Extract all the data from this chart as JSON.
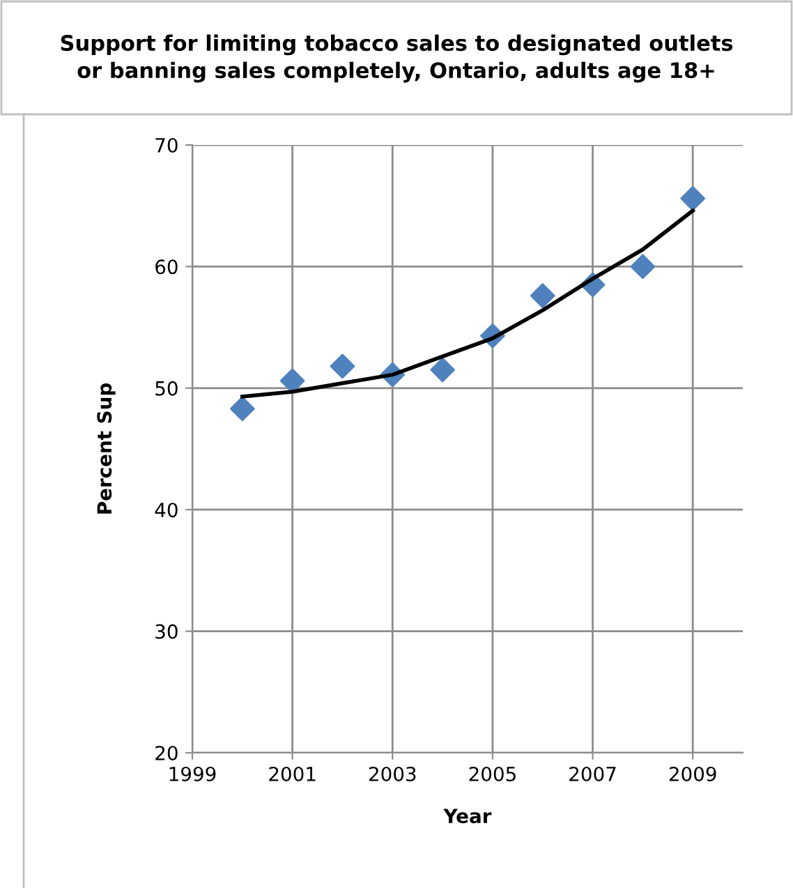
{
  "chart_data": {
    "type": "scatter",
    "title": "Support for limiting tobacco sales to designated outlets\nor banning sales completely, Ontario, adults age 18+",
    "xlabel": "Year",
    "ylabel": "Percent Sup",
    "series": [
      {
        "color": "#4f81bd",
        "marker": "diamond",
        "x": [
          2000,
          2001,
          2002,
          2003,
          2004,
          2005,
          2006,
          2007,
          2008,
          2009
        ],
        "values": [
          48.3,
          50.6,
          51.8,
          51.1,
          51.5,
          54.3,
          57.6,
          58.5,
          60.0,
          65.6
        ]
      },
      {
        "type": "line",
        "color": "#000000",
        "marker": "none",
        "x": [
          2000,
          2001,
          2002,
          2003,
          2004,
          2005,
          2006,
          2007,
          2008,
          2009
        ],
        "values": [
          49.3,
          49.7,
          50.4,
          51.1,
          52.6,
          54.1,
          56.4,
          59.0,
          61.4,
          64.6
        ]
      }
    ],
    "xlim": [
      1999,
      2010
    ],
    "xticks": [
      1999,
      2001,
      2003,
      2005,
      2007,
      2009
    ],
    "ylim": [
      20,
      70
    ],
    "yticks": [
      20,
      30,
      40,
      50,
      60,
      70
    ],
    "grid": true
  }
}
